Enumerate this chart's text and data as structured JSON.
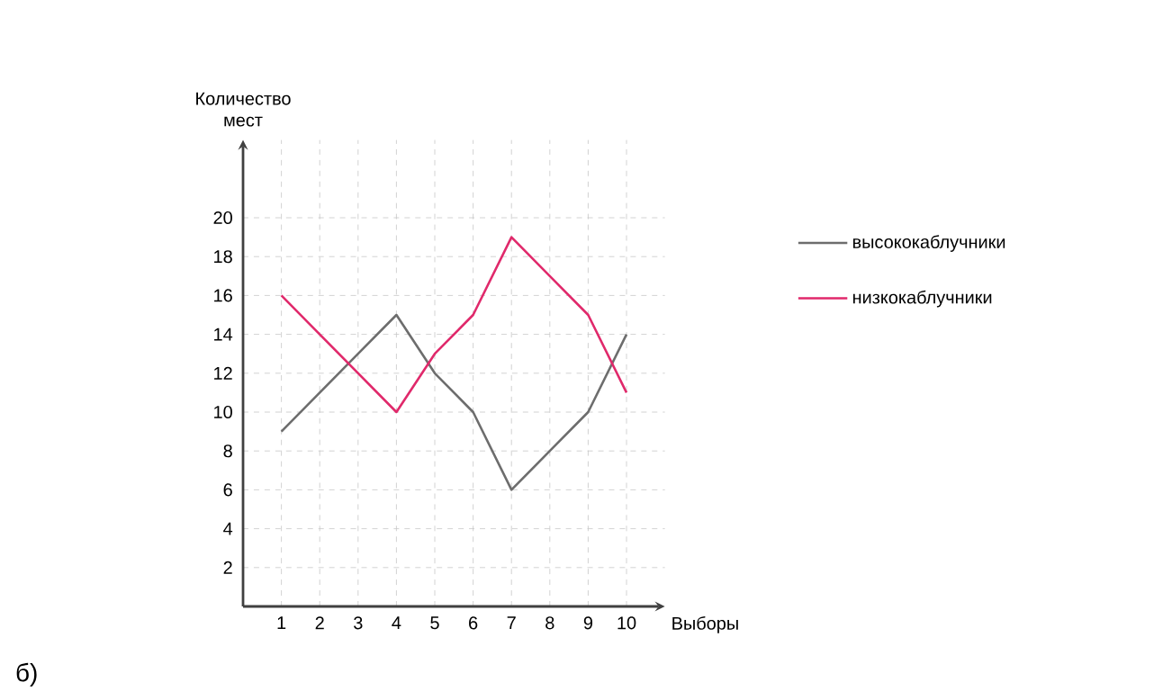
{
  "chart_data": {
    "type": "line",
    "xlabel": "Выборы",
    "ylabel": "Количество мест",
    "x": [
      1,
      2,
      3,
      4,
      5,
      6,
      7,
      8,
      9,
      10
    ],
    "series": [
      {
        "name": "высококаблучники",
        "color": "#6d6d6d",
        "values": [
          9,
          11,
          13,
          15,
          12,
          10,
          6,
          8,
          10,
          14
        ]
      },
      {
        "name": "низкокаблучники",
        "color": "#e0296b",
        "values": [
          16,
          14,
          12,
          10,
          13,
          15,
          19,
          17,
          15,
          11
        ]
      }
    ],
    "xlim": [
      0,
      11
    ],
    "ylim": [
      0,
      24
    ],
    "xticks": [
      1,
      2,
      3,
      4,
      5,
      6,
      7,
      8,
      9,
      10
    ],
    "yticks": [
      2,
      4,
      6,
      8,
      10,
      12,
      14,
      16,
      18,
      20
    ],
    "grid": true,
    "legend": "right",
    "marker": "none",
    "line_style": "solid",
    "annotations": [
      "б)"
    ]
  }
}
